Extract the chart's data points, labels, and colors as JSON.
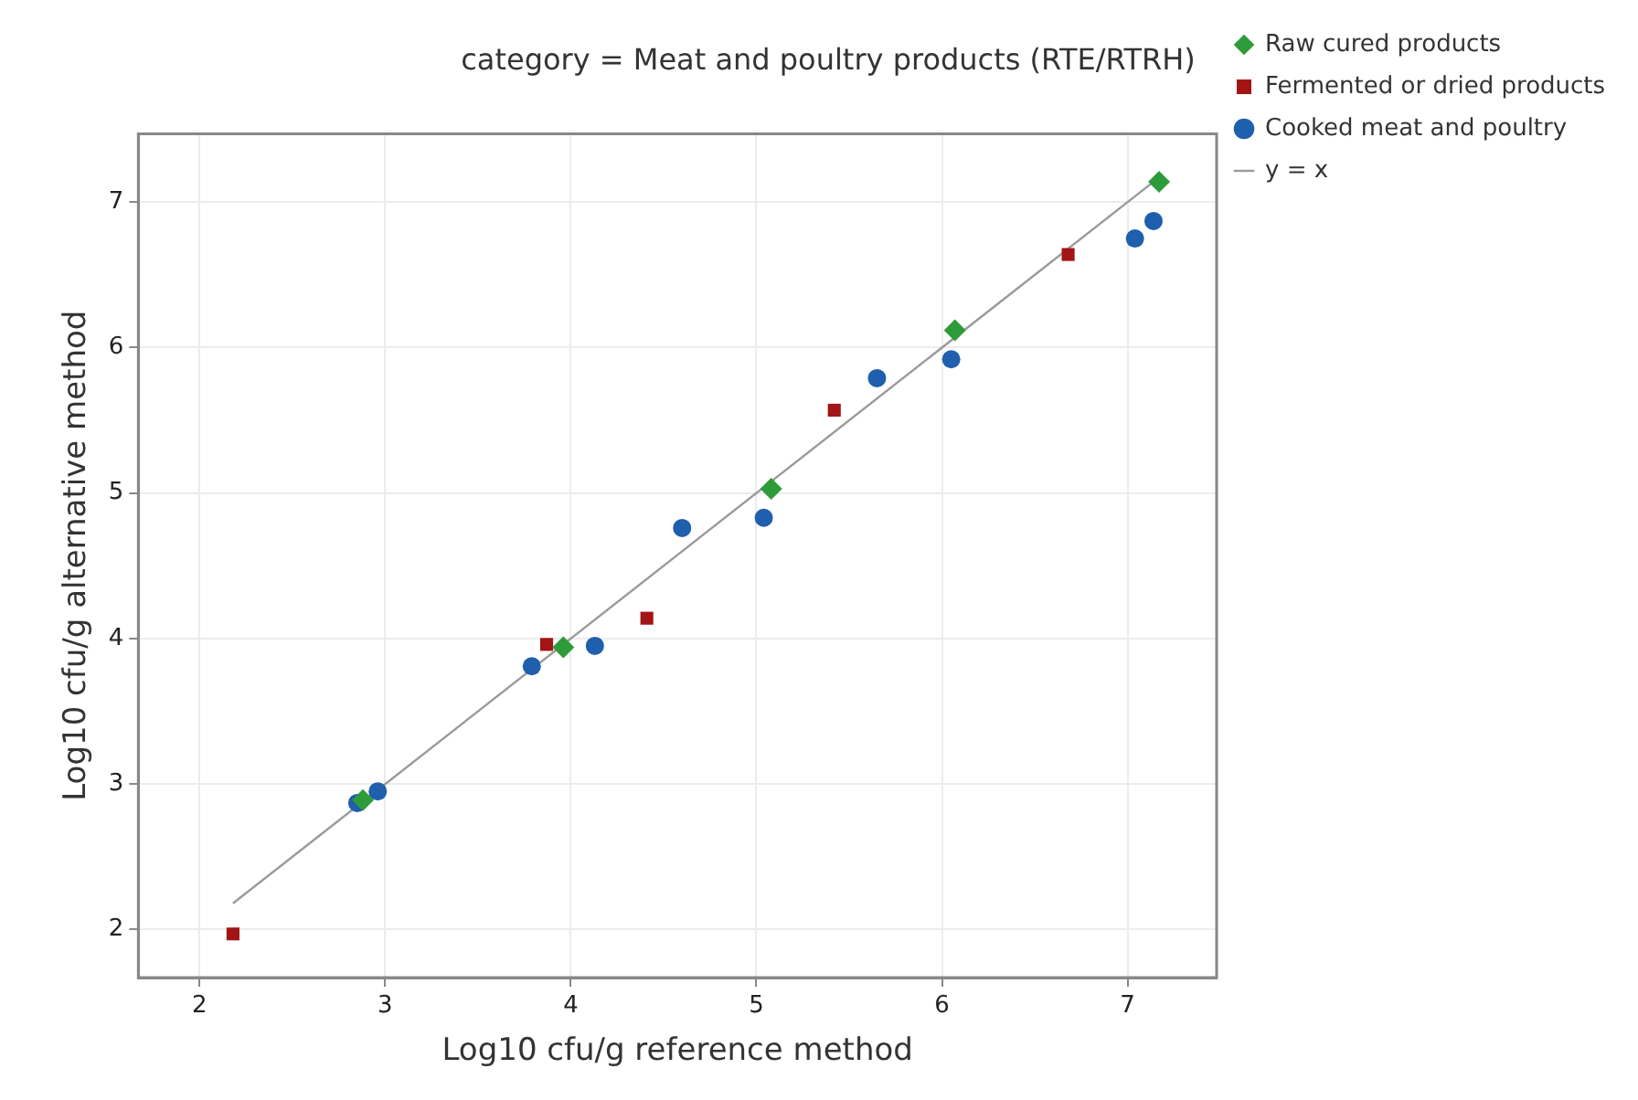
{
  "chart_data": {
    "type": "scatter",
    "title": "category = Meat and poultry products (RTE/RTRH)",
    "xlabel": "Log10 cfu/g reference method",
    "ylabel": "Log10 cfu/g alternative method",
    "xlim": [
      1.67,
      7.48
    ],
    "ylim": [
      1.67,
      7.47
    ],
    "xticks": [
      2,
      3,
      4,
      5,
      6,
      7
    ],
    "yticks": [
      2,
      3,
      4,
      5,
      6,
      7
    ],
    "grid": true,
    "legend": "top right",
    "series": [
      {
        "name": "y = x",
        "type": "line",
        "color": "#9a9a9a",
        "marker": "none",
        "line_style": "solid",
        "x": [
          2.18,
          7.15
        ],
        "values": [
          2.18,
          7.15
        ]
      },
      {
        "name": "Cooked meat and poultry",
        "color": "#1f5fad",
        "marker": "circle",
        "x": [
          2.96,
          2.85,
          3.79,
          4.13,
          4.6,
          5.04,
          5.65,
          6.05,
          7.04,
          7.14
        ],
        "values": [
          2.95,
          2.87,
          3.81,
          3.95,
          4.76,
          4.83,
          5.79,
          5.92,
          6.75,
          6.87
        ]
      },
      {
        "name": "Fermented or dried products",
        "color": "#a31515",
        "marker": "square",
        "x": [
          2.18,
          3.87,
          4.41,
          5.42,
          6.68
        ],
        "values": [
          1.97,
          3.96,
          4.14,
          5.57,
          6.64
        ]
      },
      {
        "name": "Raw cured products",
        "color": "#2e9b3a",
        "marker": "diamond",
        "x": [
          2.88,
          3.96,
          5.08,
          6.07,
          7.17
        ],
        "values": [
          2.89,
          3.94,
          5.03,
          6.12,
          7.14
        ]
      }
    ]
  }
}
